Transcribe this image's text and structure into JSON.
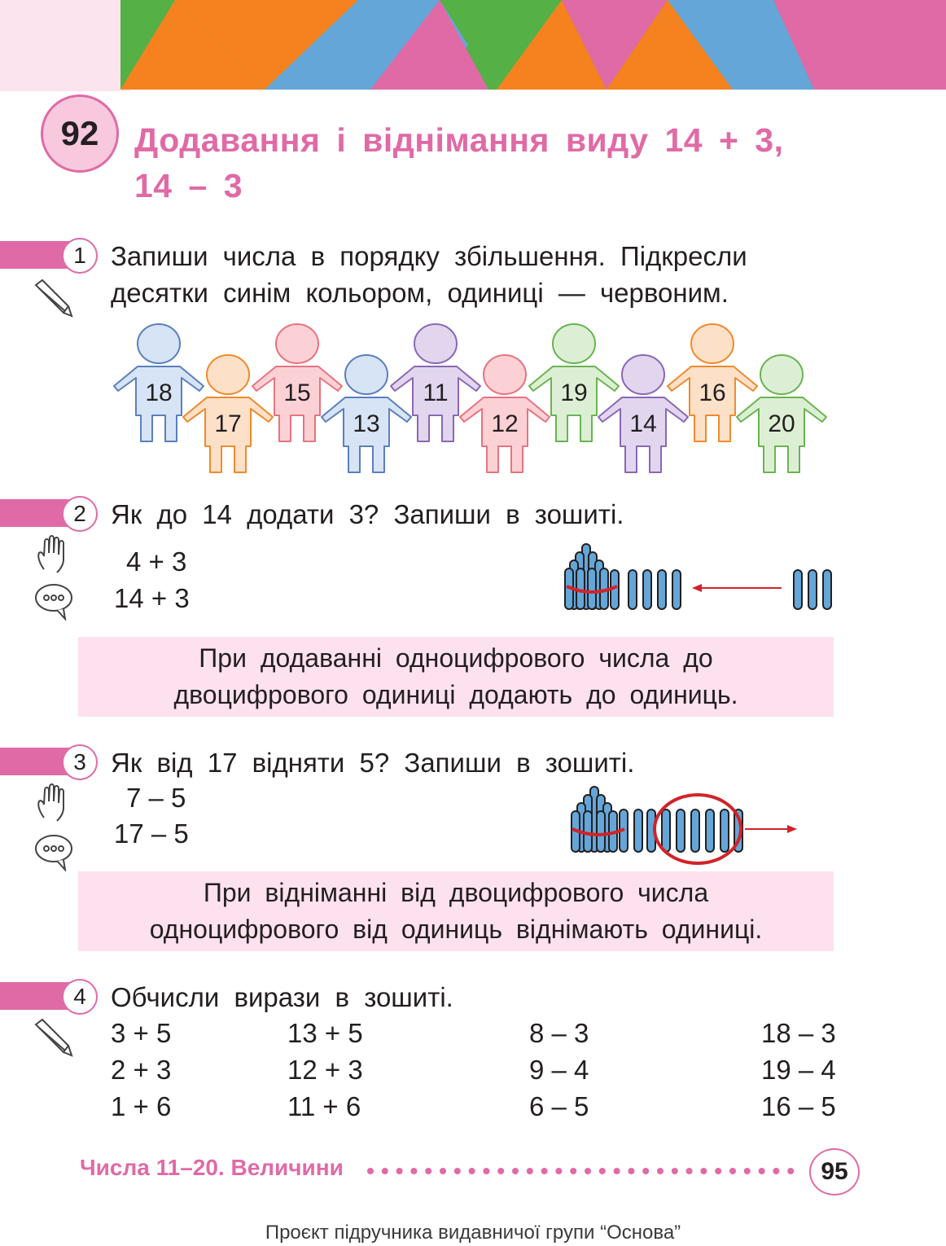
{
  "colors": {
    "accent": "#e06aa6",
    "rule_bg": "#fde1ee",
    "green": "#55b046",
    "orange": "#f5821f",
    "blue": "#64a6d8",
    "pink": "#e06aa6"
  },
  "lesson": {
    "number": "92",
    "title_line1": "Додавання і віднімання виду 14 + 3,",
    "title_line2": "14 – 3"
  },
  "task1": {
    "number": "1",
    "line1": "Запиши числа в порядку збільшення. Підкресли",
    "line2": "десятки синім кольором, одиниці — червоним.",
    "icon": "pencil-icon",
    "figures": [
      {
        "label": "18",
        "color": "blue"
      },
      {
        "label": "17",
        "color": "orange"
      },
      {
        "label": "15",
        "color": "pink"
      },
      {
        "label": "13",
        "color": "blue"
      },
      {
        "label": "11",
        "color": "purple"
      },
      {
        "label": "12",
        "color": "pink"
      },
      {
        "label": "19",
        "color": "green"
      },
      {
        "label": "14",
        "color": "purple"
      },
      {
        "label": "16",
        "color": "orange"
      },
      {
        "label": "20",
        "color": "green"
      }
    ]
  },
  "task2": {
    "number": "2",
    "text": "Як до 14 додати 3? Запиши в зошиті.",
    "expr1": "4 + 3",
    "expr2": "14 + 3",
    "icons": [
      "hand-icon",
      "speech-bubble-icon"
    ],
    "rule_line1": "При додаванні одноцифрового числа до",
    "rule_line2": "двоцифрового одиниці додають до одиниць."
  },
  "task3": {
    "number": "3",
    "text": "Як від 17 відняти 5? Запиши в зошиті.",
    "expr1": "7 – 5",
    "expr2": "17 – 5",
    "icons": [
      "hand-icon",
      "speech-bubble-icon"
    ],
    "rule_line1": "При відніманні від двоцифрового числа",
    "rule_line2": "одноцифрового від одиниць віднімають одиниці."
  },
  "task4": {
    "number": "4",
    "text": "Обчисли вирази в зошиті.",
    "icon": "pencil-icon",
    "columns": [
      [
        "3 + 5",
        "2 + 3",
        "1 + 6"
      ],
      [
        "13 + 5",
        "12 + 3",
        "11 + 6"
      ],
      [
        "8 – 3",
        "9 – 4",
        "6 – 5"
      ],
      [
        "18 – 3",
        "19 – 4",
        "16 – 5"
      ]
    ]
  },
  "footer": {
    "section": "Числа 11–20. Величини",
    "page": "95",
    "credit": "Проєкт підручника видавничої групи “Основа”"
  }
}
